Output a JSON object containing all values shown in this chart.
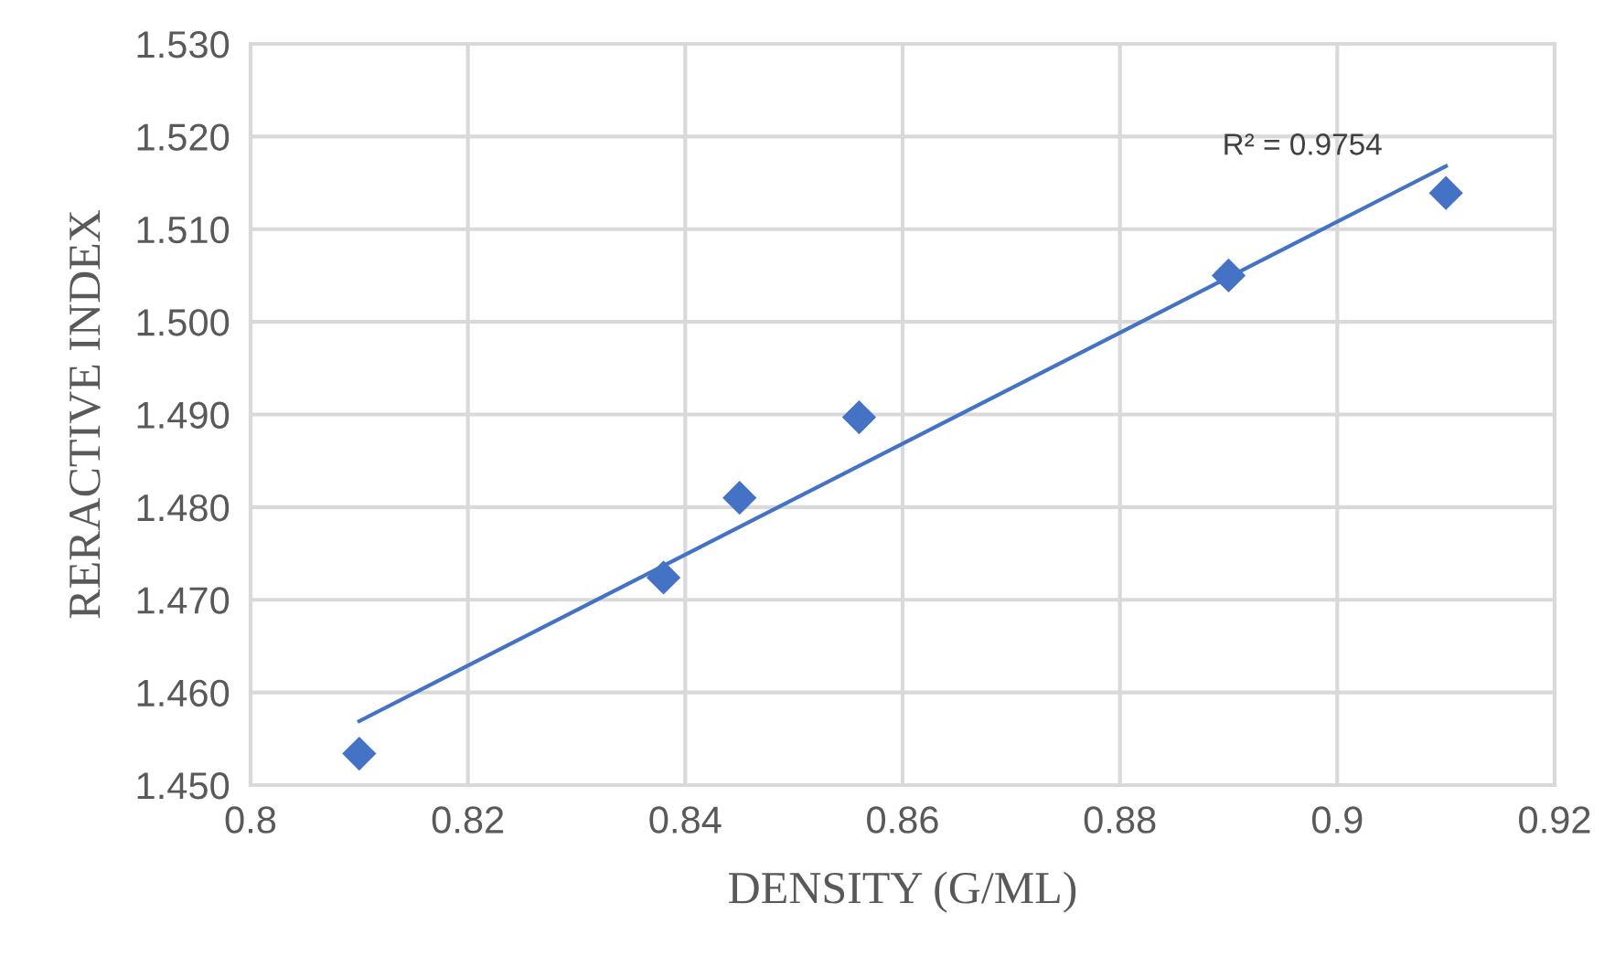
{
  "chart_data": {
    "type": "scatter",
    "xlabel": "DENSITY (G/ML)",
    "ylabel": "RERACTIVE INDEX",
    "series": [
      {
        "color": "#4472c4",
        "marker": "diamond",
        "x": [
          0.81,
          0.838,
          0.845,
          0.856,
          0.89,
          0.91
        ],
        "values": [
          1.4534,
          1.4724,
          1.481,
          1.4897,
          1.505,
          1.5139
        ]
      },
      {
        "type": "line",
        "color": "#4472c4",
        "marker": "none",
        "x": [
          0.81,
          0.91
        ],
        "values": [
          1.4569,
          1.5168
        ]
      }
    ],
    "annotations": [
      {
        "text": "R² = 0.9754",
        "x": 0.91,
        "y": 1.5168
      }
    ],
    "xlim": [
      0.8,
      0.92
    ],
    "xticks": [
      0.8,
      0.82,
      0.84,
      0.86,
      0.88,
      0.9,
      0.92
    ],
    "ylim": [
      1.45,
      1.53
    ],
    "yticks": [
      {
        "value": 1.45,
        "label": "1.450"
      },
      {
        "value": 1.46,
        "label": "1.460"
      },
      {
        "value": 1.47,
        "label": "1.470"
      },
      {
        "value": 1.48,
        "label": "1.480"
      },
      {
        "value": 1.49,
        "label": "1.490"
      },
      {
        "value": 1.5,
        "label": "1.500"
      },
      {
        "value": 1.51,
        "label": "1.510"
      },
      {
        "value": 1.52,
        "label": "1.520"
      },
      {
        "value": 1.53,
        "label": "1.530"
      }
    ],
    "grid": true
  }
}
